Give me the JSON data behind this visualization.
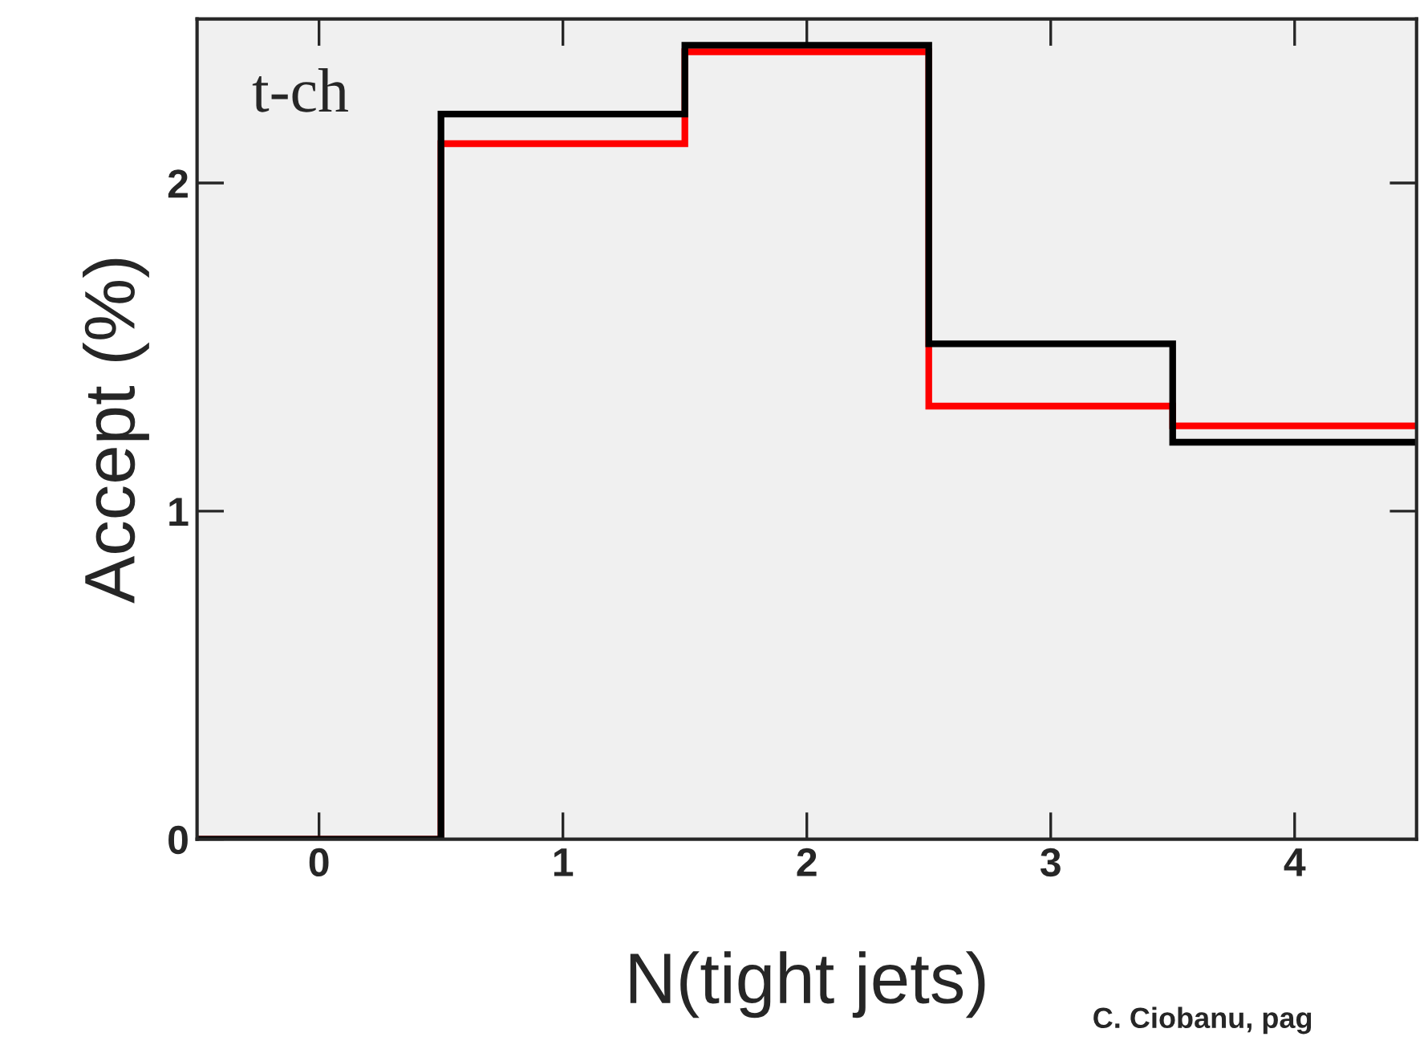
{
  "chart_data": {
    "type": "histogram",
    "xlabel": "N(tight jets)",
    "ylabel": "Accept (%)",
    "bins": [
      -0.5,
      0.5,
      1.5,
      2.5,
      3.5,
      4.5
    ],
    "series": [
      {
        "color": "#000000",
        "values": [
          0,
          2.21,
          2.42,
          1.51,
          1.21
        ]
      },
      {
        "color": "#ff0000",
        "values": [
          0,
          2.12,
          2.4,
          1.32,
          1.26
        ]
      }
    ],
    "xlim": [
      -0.5,
      4.5
    ],
    "ylim": [
      0,
      2.5
    ],
    "xticks": [
      0,
      1,
      2,
      3,
      4
    ],
    "yticks": [
      0,
      1,
      2
    ],
    "grid": false,
    "legend": false,
    "annotations": [
      "t-ch",
      "C. Ciobanu, pag"
    ]
  }
}
